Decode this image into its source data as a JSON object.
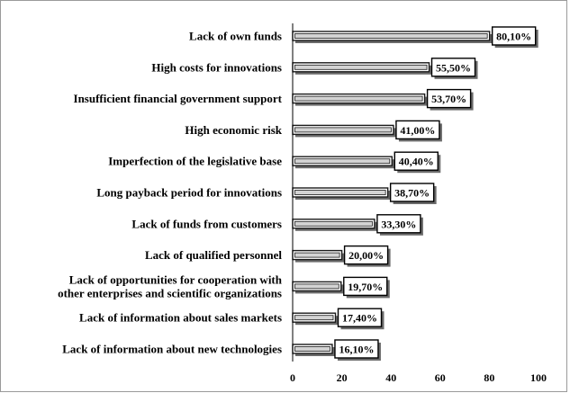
{
  "chart_data": {
    "type": "bar",
    "orientation": "horizontal",
    "categories": [
      "Lack of own funds",
      "High costs for innovations",
      "Insufficient financial government support",
      "High economic risk",
      "Imperfection of the legislative base",
      "Long payback period for innovations",
      "Lack of funds from customers",
      "Lack of qualified personnel",
      [
        "Lack of opportunities for cooperation with",
        "other enterprises and scientific organizations"
      ],
      "Lack of information about sales markets",
      "Lack of information about new technologies"
    ],
    "values": [
      80.1,
      55.5,
      53.7,
      41.0,
      40.4,
      38.7,
      33.3,
      20.0,
      19.7,
      17.4,
      16.1
    ],
    "value_labels": [
      "80,10%",
      "55,50%",
      "53,70%",
      "41,00%",
      "40,40%",
      "38,70%",
      "33,30%",
      "20,00%",
      "19,70%",
      "17,40%",
      "16,10%"
    ],
    "xlim": [
      0,
      100
    ],
    "xticks": [
      0,
      20,
      40,
      60,
      80,
      100
    ],
    "grid": false,
    "legend": "none",
    "colors": {
      "bar_fill": "#d3d3d3",
      "bar_border": "#1a1a1a",
      "shadow": "#6b6b6b",
      "frame": "#9a9a9a"
    }
  }
}
